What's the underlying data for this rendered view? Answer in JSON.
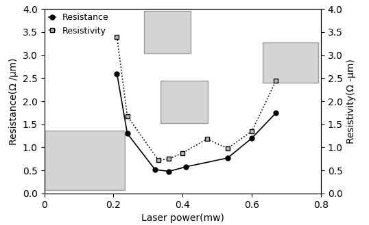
{
  "chart_data": {
    "type": "line",
    "x_label": "Laser power(mw)",
    "y_label": "Resistance(Ω /μm)",
    "y2_label": "Resistivity(Ω -μm)",
    "xlim": [
      0,
      0.8
    ],
    "xticks": [
      0,
      0.2,
      0.4,
      0.6,
      0.8
    ],
    "ylim": [
      0,
      4.0
    ],
    "yticks": [
      {
        "value": 0,
        "label": "0.0"
      },
      {
        "value": 0.5,
        "label": "0.5"
      },
      {
        "value": 1.0,
        "label": "1.0"
      },
      {
        "value": 1.5,
        "label": "1.5"
      },
      {
        "value": 2.0,
        "label": "2.0"
      },
      {
        "value": 2.5,
        "label": "2.5"
      },
      {
        "value": 3.0,
        "label": "3.0"
      },
      {
        "value": 3.5,
        "label": "3.5"
      },
      {
        "value": 4.0,
        "label": "4.0"
      }
    ],
    "y2lim": [
      0,
      4.0
    ],
    "y2ticks": [
      {
        "value": 0,
        "label": "0.0"
      },
      {
        "value": 0.5,
        "label": "0.5"
      },
      {
        "value": 1.0,
        "label": "1.0"
      },
      {
        "value": 1.5,
        "label": "1.5"
      },
      {
        "value": 2.0,
        "label": "2.0"
      },
      {
        "value": 2.5,
        "label": "2.5"
      },
      {
        "value": 3.0,
        "label": "3.0"
      },
      {
        "value": 3.5,
        "label": "3.5"
      },
      {
        "value": 4.0,
        "label": "4.0"
      }
    ],
    "legend": "upper left",
    "series": [
      {
        "name": "Resistance",
        "color": "#000000",
        "marker": "circle",
        "line_style": "solid",
        "x": [
          0.21,
          0.24,
          0.32,
          0.36,
          0.41,
          0.53,
          0.6,
          0.67
        ],
        "values": [
          2.6,
          1.3,
          0.52,
          0.48,
          0.58,
          0.77,
          1.2,
          1.75
        ]
      },
      {
        "name": "Resistivity",
        "color": "#000000",
        "marker": "square",
        "line_style": "dotted",
        "axis": "y2",
        "x": [
          0.21,
          0.24,
          0.33,
          0.36,
          0.4,
          0.47,
          0.53,
          0.6,
          0.67
        ],
        "values": [
          3.4,
          1.68,
          0.72,
          0.75,
          0.88,
          1.18,
          0.98,
          1.35,
          2.45
        ]
      }
    ]
  }
}
